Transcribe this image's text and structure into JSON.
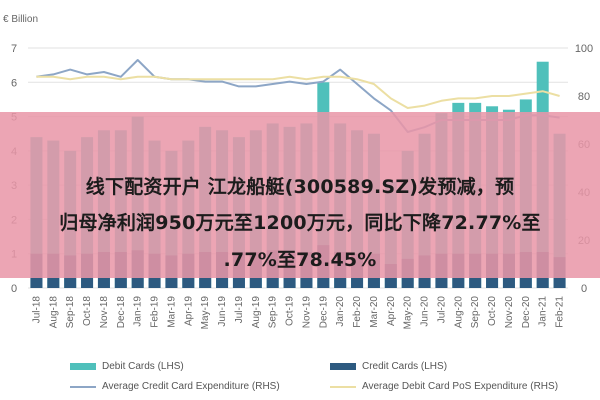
{
  "chart_data": {
    "type": "bar",
    "unit_label": "€ Billion",
    "categories": [
      "Jul-18",
      "Aug-18",
      "Sep-18",
      "Oct-18",
      "Nov-18",
      "Dec-18",
      "Jan-19",
      "Feb-19",
      "Mar-19",
      "Apr-19",
      "May-19",
      "Jun-19",
      "Jul-19",
      "Aug-19",
      "Sep-19",
      "Oct-19",
      "Nov-19",
      "Dec-19",
      "Jan-20",
      "Feb-20",
      "Mar-20",
      "Apr-20",
      "May-20",
      "Jun-20",
      "Jul-20",
      "Aug-20",
      "Sep-20",
      "Oct-20",
      "Nov-20",
      "Dec-20",
      "Jan-21",
      "Feb-21"
    ],
    "left_axis": {
      "ylim": [
        0,
        7
      ],
      "ticks": [
        0,
        1,
        2,
        3,
        4,
        5,
        6,
        7
      ]
    },
    "right_axis": {
      "ylim": [
        0,
        100
      ],
      "ticks": [
        0,
        20,
        40,
        60,
        80,
        100
      ]
    },
    "series": [
      {
        "name": "Debit Cards (LHS)",
        "kind": "bar",
        "axis": "left",
        "color": "#4fc0bb",
        "values": [
          4.4,
          4.3,
          4.0,
          4.4,
          4.6,
          4.6,
          5.0,
          4.3,
          4.0,
          4.3,
          4.7,
          4.6,
          4.4,
          4.6,
          4.8,
          4.7,
          4.8,
          6.0,
          4.8,
          4.6,
          4.5,
          3.1,
          4.0,
          4.5,
          5.1,
          5.4,
          5.4,
          5.3,
          5.2,
          5.5,
          6.6,
          4.5
        ]
      },
      {
        "name": "Credit Cards (LHS)",
        "kind": "bar",
        "axis": "left",
        "color": "#2d5a80",
        "values": [
          1.0,
          1.0,
          0.95,
          1.0,
          1.05,
          1.05,
          1.1,
          1.0,
          0.95,
          1.0,
          1.05,
          1.05,
          1.05,
          1.05,
          1.1,
          1.05,
          1.05,
          1.25,
          1.05,
          1.0,
          1.0,
          0.7,
          0.85,
          0.95,
          1.0,
          1.0,
          1.0,
          1.0,
          1.0,
          1.05,
          1.05,
          0.9
        ]
      },
      {
        "name": "Average Credit Card Expenditure (RHS)",
        "kind": "line",
        "axis": "right",
        "color": "#8da6c6",
        "values": [
          88,
          89,
          91,
          89,
          90,
          88,
          95,
          88,
          87,
          87,
          86,
          86,
          84,
          84,
          85,
          86,
          85,
          86,
          91,
          85,
          79,
          74,
          65,
          67,
          70,
          70,
          70,
          70,
          70,
          72,
          72,
          71
        ]
      },
      {
        "name": "Average Debit Card PoS Expenditure (RHS)",
        "kind": "line",
        "axis": "right",
        "color": "#ecdfa3",
        "values": [
          88,
          88,
          87,
          88,
          88,
          87,
          88,
          88,
          87,
          87,
          87,
          87,
          87,
          87,
          87,
          88,
          87,
          88,
          88,
          87,
          85,
          79,
          75,
          76,
          78,
          79,
          79,
          80,
          80,
          81,
          82,
          80
        ]
      }
    ]
  },
  "banner": {
    "line1": "线下配资开户 江龙船艇(300589.SZ)发预减，预",
    "line2": "归母净利润950万元至1200万元，同比下降72.77%至",
    "line3": ".77%至78.45%"
  }
}
